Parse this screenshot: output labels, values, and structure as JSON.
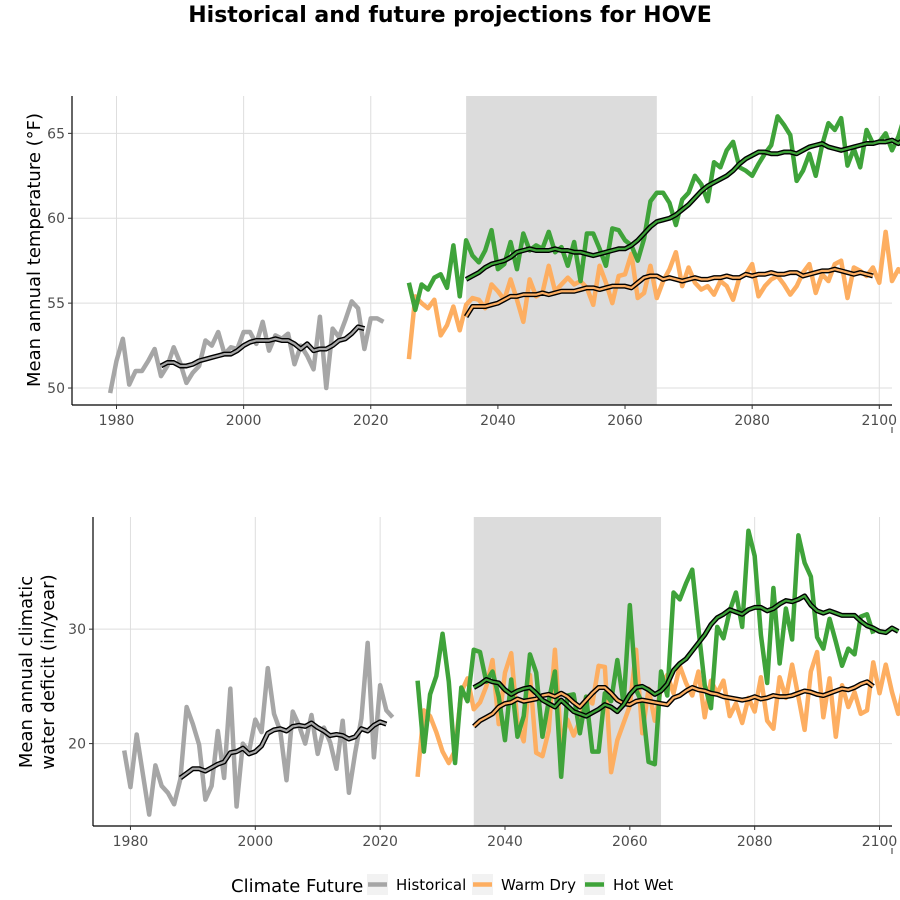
{
  "title": "Historical and future projections for HOVE",
  "legend": {
    "title": "Climate Future",
    "items": [
      {
        "name": "Historical",
        "color": "#a6a6a6"
      },
      {
        "name": "Warm Dry",
        "color": "#fdae61"
      },
      {
        "name": "Hot Wet",
        "color": "#3fa33a"
      }
    ]
  },
  "chart_data": [
    {
      "type": "line",
      "ylabel": "Mean annual temperature (°F)",
      "xlim": [
        1973,
        2102
      ],
      "ylim": [
        49.0,
        67.2
      ],
      "xticks": [
        1980,
        2000,
        2020,
        2040,
        2060,
        2080,
        2100
      ],
      "yticks": [
        50,
        55,
        60,
        65
      ],
      "shaded_period": [
        2035,
        2065
      ],
      "series": [
        {
          "name": "Historical",
          "color": "#a6a6a6",
          "x_start": 1979,
          "values": [
            49.7,
            51.6,
            52.9,
            50.2,
            51.0,
            51.0,
            51.6,
            52.3,
            50.7,
            51.3,
            52.4,
            51.5,
            50.3,
            50.9,
            51.3,
            52.8,
            52.5,
            53.3,
            52.0,
            52.4,
            52.3,
            53.3,
            53.3,
            52.6,
            53.9,
            52.2,
            53.1,
            52.9,
            53.2,
            51.4,
            52.5,
            51.9,
            51.1,
            54.2,
            50.0,
            53.5,
            53.0,
            54.0,
            55.1,
            54.7,
            52.3,
            54.1,
            54.1,
            53.9
          ]
        },
        {
          "name": "Historical smoothed",
          "color": "#a6a6a6",
          "smoothed": true,
          "x_start": 1987,
          "values": [
            51.3,
            51.5,
            51.5,
            51.3,
            51.3,
            51.4,
            51.6,
            51.7,
            51.8,
            51.9,
            52.0,
            52.0,
            52.2,
            52.5,
            52.7,
            52.8,
            52.8,
            52.8,
            52.9,
            52.8,
            52.8,
            52.6,
            52.3,
            52.6,
            52.2,
            52.3,
            52.3,
            52.5,
            52.8,
            52.9,
            53.2,
            53.6,
            53.5
          ]
        },
        {
          "name": "Warm Dry",
          "color": "#fdae61",
          "x_start": 2026,
          "values": [
            51.7,
            55.4,
            55.0,
            54.7,
            55.2,
            53.1,
            53.7,
            54.8,
            53.4,
            54.9,
            55.3,
            55.2,
            54.7,
            56.1,
            55.7,
            55.2,
            56.4,
            55.2,
            53.9,
            56.4,
            55.4,
            55.6,
            57.2,
            55.7,
            56.1,
            56.5,
            56.1,
            56.3,
            55.9,
            54.9,
            57.2,
            56.2,
            55.0,
            56.6,
            56.7,
            57.9,
            55.3,
            55.6,
            57.2,
            55.3,
            56.3,
            57.0,
            58.0,
            56.0,
            57.1,
            56.2,
            55.8,
            56.0,
            55.5,
            56.3,
            56.0,
            55.2,
            56.5,
            56.7,
            57.3,
            55.4,
            56.0,
            56.4,
            56.6,
            56.1,
            55.5,
            56.0,
            56.8,
            57.3,
            55.6,
            56.7,
            56.3,
            57.3,
            57.5,
            55.3,
            57.1,
            56.9,
            56.6,
            57.1,
            56.2,
            59.2,
            56.3,
            57.0,
            56.6,
            57.1,
            57.3,
            56.7,
            56.2,
            55.4,
            57.6
          ]
        },
        {
          "name": "Warm Dry smoothed",
          "color": "#fdae61",
          "smoothed": true,
          "x_start": 2035,
          "values": [
            54.2,
            54.8,
            54.8,
            54.8,
            54.9,
            55.0,
            55.2,
            55.4,
            55.4,
            55.5,
            55.5,
            55.5,
            55.6,
            55.5,
            55.6,
            55.7,
            55.7,
            55.7,
            55.8,
            55.9,
            55.9,
            55.8,
            55.9,
            56.0,
            56.0,
            56.0,
            55.9,
            56.2,
            56.5,
            56.6,
            56.6,
            56.4,
            56.5,
            56.4,
            56.3,
            56.4,
            56.5,
            56.4,
            56.4,
            56.5,
            56.5,
            56.6,
            56.5,
            56.5,
            56.7,
            56.6,
            56.7,
            56.7,
            56.8,
            56.7,
            56.7,
            56.8,
            56.8,
            56.6,
            56.7,
            56.8,
            56.9,
            56.9,
            57.0,
            56.9,
            56.8,
            56.7,
            56.8,
            56.7,
            56.6
          ]
        },
        {
          "name": "Hot Wet",
          "color": "#3fa33a",
          "x_start": 2026,
          "values": [
            56.2,
            54.6,
            56.1,
            55.8,
            56.5,
            56.7,
            55.9,
            58.4,
            55.4,
            58.7,
            57.8,
            57.4,
            58.1,
            59.3,
            57.0,
            57.3,
            58.6,
            57.0,
            59.1,
            58.1,
            58.4,
            58.2,
            59.2,
            58.0,
            58.3,
            57.2,
            58.6,
            56.3,
            59.1,
            59.1,
            58.2,
            57.2,
            59.4,
            59.3,
            58.7,
            58.4,
            57.5,
            58.8,
            61.0,
            61.5,
            61.5,
            60.9,
            59.6,
            61.1,
            61.5,
            62.5,
            62.0,
            61.0,
            63.3,
            63.0,
            64.0,
            64.5,
            63.0,
            62.8,
            62.5,
            63.2,
            63.8,
            64.3,
            66.0,
            65.5,
            64.9,
            62.2,
            62.8,
            63.8,
            62.5,
            64.3,
            65.6,
            65.2,
            65.9,
            63.1,
            64.1,
            63.0,
            65.2,
            64.4,
            64.5,
            65.0,
            64.0,
            64.8,
            66.0,
            65.8,
            64.9,
            64.5,
            66.4,
            65.7
          ]
        },
        {
          "name": "Hot Wet smoothed",
          "color": "#3fa33a",
          "smoothed": true,
          "x_start": 2035,
          "values": [
            56.4,
            56.6,
            56.8,
            57.1,
            57.3,
            57.4,
            57.5,
            57.7,
            58.0,
            58.1,
            58.2,
            58.1,
            58.1,
            58.1,
            58.2,
            58.1,
            58.1,
            58.0,
            58.0,
            57.9,
            57.8,
            57.9,
            58.0,
            58.1,
            58.2,
            58.2,
            58.4,
            58.7,
            59.1,
            59.5,
            59.8,
            59.9,
            60.0,
            60.2,
            60.5,
            60.8,
            61.2,
            61.6,
            61.9,
            62.1,
            62.3,
            62.5,
            62.8,
            63.2,
            63.5,
            63.7,
            63.9,
            63.9,
            63.8,
            63.8,
            63.9,
            63.9,
            63.8,
            64.0,
            64.2,
            64.3,
            64.4,
            64.2,
            64.1,
            64.0,
            64.1,
            64.2,
            64.3,
            64.4,
            64.4,
            64.5,
            64.5,
            64.6,
            64.4,
            64.7,
            64.9
          ]
        }
      ]
    },
    {
      "type": "line",
      "ylabel": "Mean annual climatic water deficit (in/year)",
      "ylabel_lines": [
        "Mean annual climatic",
        "water deficit (in/year)"
      ],
      "xlim": [
        1974,
        2102
      ],
      "ylim": [
        12.8,
        39.8
      ],
      "xticks": [
        1980,
        2000,
        2020,
        2040,
        2060,
        2080,
        2100
      ],
      "yticks": [
        20,
        30
      ],
      "shaded_period": [
        2035,
        2065
      ],
      "series": [
        {
          "name": "Historical",
          "color": "#a6a6a6",
          "x_start": 1979,
          "values": [
            19.4,
            16.2,
            20.8,
            17.3,
            13.8,
            18.1,
            16.3,
            15.7,
            14.7,
            16.9,
            23.2,
            21.7,
            19.9,
            15.1,
            16.3,
            21.1,
            17.0,
            24.8,
            14.5,
            20.0,
            19.3,
            22.1,
            21.0,
            26.6,
            22.6,
            21.1,
            16.8,
            22.8,
            21.6,
            20.0,
            22.5,
            19.1,
            21.4,
            20.1,
            17.8,
            22.0,
            15.7,
            19.2,
            22.2,
            28.8,
            18.8,
            25.1,
            22.9,
            22.3
          ]
        },
        {
          "name": "Historical smoothed",
          "color": "#a6a6a6",
          "smoothed": true,
          "x_start": 1988,
          "values": [
            17.0,
            17.4,
            17.8,
            17.8,
            17.6,
            17.9,
            18.2,
            18.4,
            19.2,
            19.3,
            19.6,
            19.1,
            19.3,
            19.8,
            20.9,
            21.2,
            21.3,
            21.1,
            21.5,
            21.6,
            21.5,
            21.8,
            21.4,
            21.1,
            20.7,
            20.8,
            20.7,
            20.4,
            20.6,
            21.3,
            21.1,
            21.6,
            21.9,
            21.7
          ]
        },
        {
          "name": "Warm Dry",
          "color": "#fdae61",
          "x_start": 2026,
          "values": [
            17.1,
            22.9,
            22.4,
            21.0,
            19.3,
            18.3,
            19.4,
            24.5,
            25.7,
            23.0,
            23.6,
            25.0,
            27.3,
            21.7,
            26.2,
            27.9,
            21.8,
            20.2,
            26.0,
            19.2,
            18.9,
            21.1,
            28.2,
            20.0,
            22.1,
            20.7,
            22.0,
            24.1,
            23.5,
            26.8,
            26.7,
            17.5,
            20.3,
            21.8,
            23.3,
            28.2,
            20.9,
            24.8,
            22.0,
            24.9,
            26.0,
            24.4,
            26.8,
            25.3,
            24.2,
            26.3,
            22.3,
            25.5,
            24.4,
            25.5,
            22.4,
            23.5,
            21.8,
            24.0,
            22.8,
            25.8,
            22.0,
            21.3,
            25.8,
            24.0,
            26.9,
            24.1,
            21.2,
            26.3,
            28.0,
            22.3,
            25.7,
            20.6,
            25.1,
            23.2,
            24.5,
            22.6,
            22.9,
            27.1,
            24.4,
            26.9,
            24.5,
            22.6,
            25.5,
            24.4,
            24.0,
            25.8,
            24.8,
            18.1,
            23.0
          ]
        },
        {
          "name": "Warm Dry smoothed",
          "color": "#fdae61",
          "smoothed": true,
          "x_start": 2035,
          "values": [
            21.5,
            22.0,
            22.3,
            22.6,
            23.2,
            23.5,
            23.6,
            23.9,
            23.7,
            23.8,
            23.9,
            24.2,
            24.3,
            24.1,
            24.4,
            24.1,
            23.6,
            23.2,
            23.8,
            24.4,
            24.9,
            24.9,
            24.4,
            23.8,
            23.5,
            23.4,
            23.7,
            23.8,
            23.7,
            23.6,
            23.5,
            23.4,
            24.0,
            24.2,
            24.6,
            24.9,
            24.7,
            24.6,
            24.4,
            24.3,
            24.1,
            24.0,
            23.9,
            23.8,
            23.9,
            24.1,
            23.9,
            24.0,
            24.2,
            24.1,
            24.1,
            24.2,
            24.4,
            24.6,
            24.5,
            24.3,
            24.2,
            24.4,
            24.6,
            24.8,
            24.7,
            24.9,
            25.2,
            25.4,
            25.0
          ]
        },
        {
          "name": "Hot Wet",
          "color": "#3fa33a",
          "x_start": 2026,
          "values": [
            25.5,
            19.3,
            24.3,
            25.9,
            29.6,
            25.4,
            18.3,
            24.9,
            23.7,
            28.2,
            28.0,
            25.4,
            26.3,
            24.1,
            20.3,
            25.6,
            20.6,
            22.4,
            27.8,
            26.2,
            20.6,
            23.7,
            26.3,
            17.1,
            24.2,
            24.3,
            20.9,
            24.1,
            19.3,
            19.3,
            24.4,
            23.7,
            27.3,
            23.5,
            32.1,
            24.7,
            23.5,
            18.4,
            18.2,
            26.3,
            24.2,
            33.2,
            32.6,
            34.0,
            35.2,
            30.0,
            25.1,
            23.1,
            30.2,
            29.2,
            31.6,
            33.2,
            30.2,
            38.6,
            36.4,
            29.5,
            25.3,
            33.6,
            27.0,
            31.8,
            29.1,
            38.2,
            35.8,
            34.6,
            29.3,
            28.3,
            30.9,
            28.9,
            26.8,
            28.3,
            27.8,
            31.1,
            31.3,
            29.6
          ]
        },
        {
          "name": "Hot Wet smoothed",
          "color": "#3fa33a",
          "smoothed": true,
          "x_start": 2035,
          "values": [
            24.9,
            25.2,
            25.6,
            25.4,
            25.3,
            24.7,
            24.3,
            24.6,
            24.8,
            24.9,
            24.4,
            23.8,
            23.5,
            23.2,
            23.8,
            23.3,
            22.8,
            22.6,
            22.4,
            22.7,
            23.0,
            23.4,
            23.2,
            22.8,
            23.4,
            24.3,
            24.9,
            25.0,
            24.7,
            24.3,
            24.6,
            25.2,
            26.4,
            27.0,
            27.4,
            28.1,
            28.8,
            29.5,
            30.4,
            31.0,
            31.3,
            31.7,
            31.5,
            31.3,
            31.7,
            31.9,
            31.9,
            31.6,
            31.8,
            32.2,
            32.5,
            32.4,
            32.6,
            32.9,
            32.1,
            31.6,
            31.4,
            31.6,
            31.4,
            31.2,
            31.2,
            31.2,
            30.7,
            30.3,
            30.1,
            29.8,
            29.7,
            30.1,
            29.8
          ]
        }
      ]
    }
  ]
}
